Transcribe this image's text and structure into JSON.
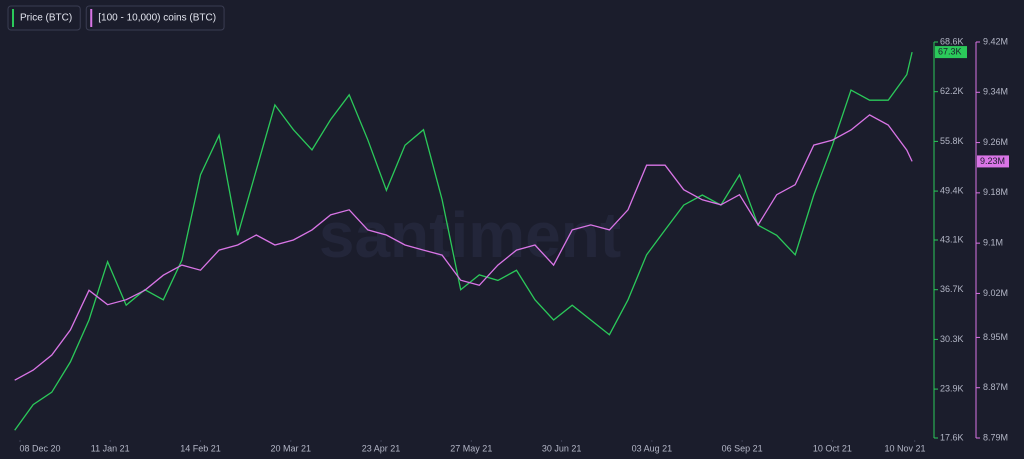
{
  "chart_data": {
    "type": "line",
    "watermark": "santiment",
    "x": [
      "2020-12-06",
      "2020-12-13",
      "2020-12-20",
      "2020-12-27",
      "2021-01-03",
      "2021-01-10",
      "2021-01-17",
      "2021-01-24",
      "2021-01-31",
      "2021-02-07",
      "2021-02-14",
      "2021-02-21",
      "2021-02-28",
      "2021-03-07",
      "2021-03-14",
      "2021-03-21",
      "2021-03-28",
      "2021-04-04",
      "2021-04-11",
      "2021-04-18",
      "2021-04-25",
      "2021-05-02",
      "2021-05-09",
      "2021-05-16",
      "2021-05-23",
      "2021-05-30",
      "2021-06-06",
      "2021-06-13",
      "2021-06-20",
      "2021-06-27",
      "2021-07-04",
      "2021-07-11",
      "2021-07-18",
      "2021-07-25",
      "2021-08-01",
      "2021-08-08",
      "2021-08-15",
      "2021-08-22",
      "2021-08-29",
      "2021-09-05",
      "2021-09-12",
      "2021-09-19",
      "2021-09-26",
      "2021-10-03",
      "2021-10-10",
      "2021-10-17",
      "2021-10-24",
      "2021-10-31",
      "2021-11-07",
      "2021-11-09"
    ],
    "series": [
      {
        "name": "Price (BTC)",
        "color": "#2bc95a",
        "last_label": "67.3K",
        "values": [
          18600,
          21900,
          23500,
          27400,
          32800,
          40300,
          34700,
          36700,
          35400,
          40500,
          51500,
          56600,
          43700,
          52100,
          60500,
          57300,
          54700,
          58600,
          61800,
          56000,
          49500,
          55300,
          57300,
          48300,
          36700,
          38600,
          37900,
          39200,
          35400,
          32800,
          34700,
          32800,
          30900,
          35400,
          41200,
          44400,
          47600,
          48900,
          47600,
          51500,
          45000,
          43700,
          41200,
          48900,
          55300,
          62400,
          61100,
          61100,
          64400,
          67300
        ]
      },
      {
        "name": "[100 - 10,000) coins (BTC)",
        "color": "#d975e6",
        "axis": "y2",
        "last_label": "9.23M",
        "values": [
          8882000,
          8898000,
          8922000,
          8962000,
          9025000,
          9002000,
          9010000,
          9025000,
          9049000,
          9065000,
          9057000,
          9089000,
          9097000,
          9113000,
          9097000,
          9105000,
          9121000,
          9145000,
          9153000,
          9121000,
          9113000,
          9097000,
          9089000,
          9081000,
          9041000,
          9033000,
          9065000,
          9089000,
          9097000,
          9065000,
          9121000,
          9129000,
          9121000,
          9153000,
          9224000,
          9224000,
          9185000,
          9169000,
          9161000,
          9177000,
          9129000,
          9177000,
          9193000,
          9256000,
          9264000,
          9280000,
          9304000,
          9288000,
          9248000,
          9230000
        ]
      }
    ],
    "xlim": [
      "2020-12-05",
      "2021-11-15"
    ],
    "xticks": [
      {
        "value": "2020-12-08",
        "label": "08 Dec 20"
      },
      {
        "value": "2021-01-11",
        "label": "11 Jan 21"
      },
      {
        "value": "2021-02-14",
        "label": "14 Feb 21"
      },
      {
        "value": "2021-03-20",
        "label": "20 Mar 21"
      },
      {
        "value": "2021-04-23",
        "label": "23 Apr 21"
      },
      {
        "value": "2021-05-27",
        "label": "27 May 21"
      },
      {
        "value": "2021-06-30",
        "label": "30 Jun 21"
      },
      {
        "value": "2021-08-03",
        "label": "03 Aug 21"
      },
      {
        "value": "2021-09-06",
        "label": "06 Sep 21"
      },
      {
        "value": "2021-10-10",
        "label": "10 Oct 21"
      },
      {
        "value": "2021-11-10",
        "label": "10 Nov 21"
      }
    ],
    "ylim": [
      17600,
      68600
    ],
    "yticks": [
      {
        "value": 17600,
        "label": "17.6K"
      },
      {
        "value": 23900,
        "label": "23.9K"
      },
      {
        "value": 30300,
        "label": "30.3K"
      },
      {
        "value": 36700,
        "label": "36.7K"
      },
      {
        "value": 43100,
        "label": "43.1K"
      },
      {
        "value": 49400,
        "label": "49.4K"
      },
      {
        "value": 55800,
        "label": "55.8K"
      },
      {
        "value": 62200,
        "label": "62.2K"
      },
      {
        "value": 68600,
        "label": "68.6K"
      }
    ],
    "y2lim": [
      8790000,
      9420000
    ],
    "y2ticks": [
      {
        "value": 8790000,
        "label": "8.79M"
      },
      {
        "value": 8870000,
        "label": "8.87M"
      },
      {
        "value": 8950000,
        "label": "8.95M"
      },
      {
        "value": 9020000,
        "label": "9.02M"
      },
      {
        "value": 9100000,
        "label": "9.1M"
      },
      {
        "value": 9180000,
        "label": "9.18M"
      },
      {
        "value": 9260000,
        "label": "9.26M"
      },
      {
        "value": 9340000,
        "label": "9.34M"
      },
      {
        "value": 9420000,
        "label": "9.42M"
      }
    ]
  }
}
